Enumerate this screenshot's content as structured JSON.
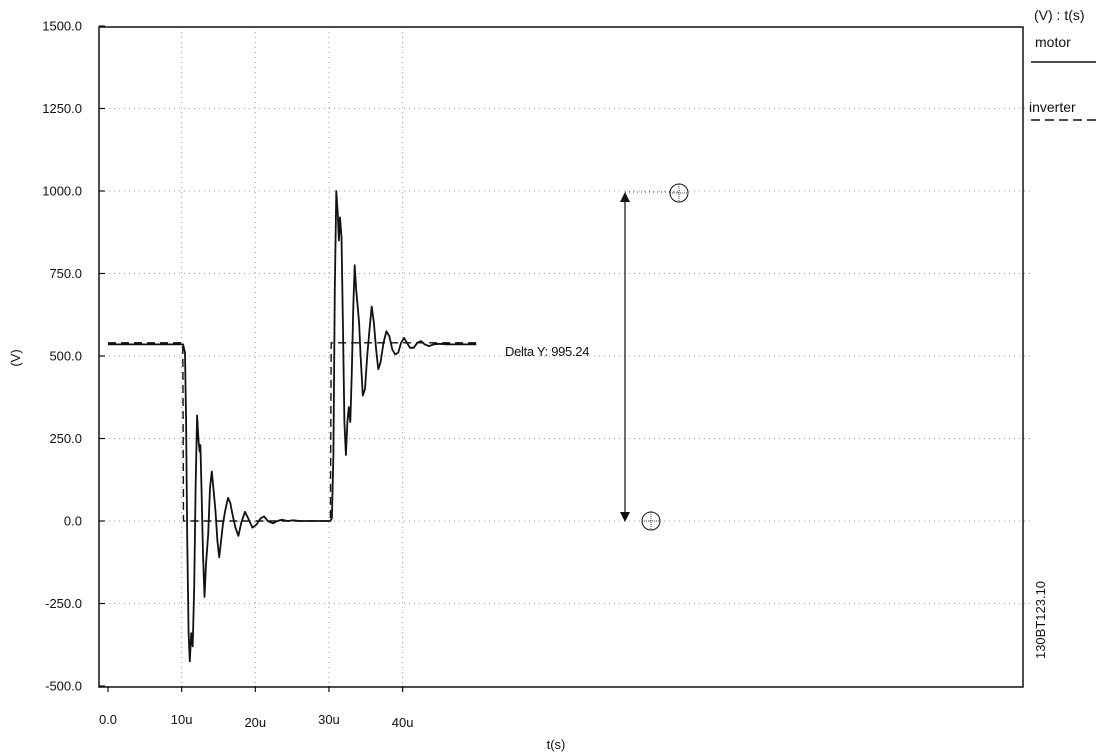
{
  "chart_data": {
    "type": "line",
    "ylabel": "(V)",
    "xlabel": "t(s)",
    "xlim": [
      0,
      50
    ],
    "ylim": [
      -500,
      1500
    ],
    "x_ticks": [
      {
        "value": 0,
        "label": "0.0"
      },
      {
        "value": 10,
        "label": "10u"
      },
      {
        "value": 20,
        "label": "20u"
      },
      {
        "value": 30,
        "label": "30u"
      },
      {
        "value": 40,
        "label": "40u"
      }
    ],
    "y_ticks": [
      {
        "value": -500,
        "label": "-500.0"
      },
      {
        "value": -250,
        "label": "-250.0"
      },
      {
        "value": 0,
        "label": "0.0"
      },
      {
        "value": 250,
        "label": "250.0"
      },
      {
        "value": 500,
        "label": "500.0"
      },
      {
        "value": 750,
        "label": "750.0"
      },
      {
        "value": 1000,
        "label": "1000.0"
      },
      {
        "value": 1250,
        "label": "1250.0"
      },
      {
        "value": 1500,
        "label": "1500.0"
      }
    ],
    "grid": true,
    "legend": {
      "header": "(V) : t(s)",
      "placement": "top-right",
      "entries": [
        {
          "name": "motor",
          "style": "solid"
        },
        {
          "name": "inverter",
          "style": "dashed"
        }
      ]
    },
    "annotation": {
      "text": "Delta Y: 995.24",
      "from": {
        "x": 29.4,
        "y": 0
      },
      "to": {
        "x": 31.0,
        "y": 995.24
      },
      "arrow_x": 28.0
    },
    "side_code": "130BT123.10",
    "series": [
      {
        "name": "motor",
        "style": "solid",
        "points": [
          [
            0,
            535
          ],
          [
            10.2,
            535
          ],
          [
            10.45,
            510
          ],
          [
            10.6,
            300
          ],
          [
            10.75,
            -50
          ],
          [
            10.95,
            -340
          ],
          [
            11.1,
            -425
          ],
          [
            11.3,
            -340
          ],
          [
            11.5,
            -380
          ],
          [
            11.7,
            -200
          ],
          [
            11.9,
            100
          ],
          [
            12.1,
            320
          ],
          [
            12.3,
            240
          ],
          [
            12.45,
            210
          ],
          [
            12.55,
            230
          ],
          [
            12.7,
            100
          ],
          [
            12.9,
            -100
          ],
          [
            13.1,
            -230
          ],
          [
            13.3,
            -130
          ],
          [
            13.6,
            -40
          ],
          [
            13.85,
            100
          ],
          [
            14.1,
            150
          ],
          [
            14.35,
            90
          ],
          [
            14.6,
            30
          ],
          [
            14.85,
            -60
          ],
          [
            15.1,
            -110
          ],
          [
            15.35,
            -60
          ],
          [
            15.6,
            -10
          ],
          [
            15.9,
            30
          ],
          [
            16.3,
            70
          ],
          [
            16.6,
            55
          ],
          [
            16.9,
            20
          ],
          [
            17.3,
            -20
          ],
          [
            17.7,
            -45
          ],
          [
            18.1,
            -5
          ],
          [
            18.6,
            28
          ],
          [
            19.1,
            5
          ],
          [
            19.6,
            -20
          ],
          [
            20.2,
            -10
          ],
          [
            20.7,
            8
          ],
          [
            21.2,
            14
          ],
          [
            21.7,
            0
          ],
          [
            22.4,
            -7
          ],
          [
            23.0,
            0
          ],
          [
            23.6,
            4
          ],
          [
            24.4,
            0
          ],
          [
            25.2,
            2
          ],
          [
            26,
            0
          ],
          [
            29.5,
            0
          ],
          [
            30.2,
            0
          ],
          [
            30.4,
            10
          ],
          [
            30.6,
            200
          ],
          [
            30.8,
            700
          ],
          [
            31.0,
            1000
          ],
          [
            31.2,
            930
          ],
          [
            31.35,
            850
          ],
          [
            31.5,
            920
          ],
          [
            31.7,
            860
          ],
          [
            31.9,
            600
          ],
          [
            32.1,
            300
          ],
          [
            32.3,
            200
          ],
          [
            32.5,
            300
          ],
          [
            32.7,
            345
          ],
          [
            32.9,
            300
          ],
          [
            33.1,
            450
          ],
          [
            33.3,
            650
          ],
          [
            33.5,
            775
          ],
          [
            33.7,
            700
          ],
          [
            33.9,
            650
          ],
          [
            34.1,
            600
          ],
          [
            34.3,
            500
          ],
          [
            34.6,
            380
          ],
          [
            34.9,
            400
          ],
          [
            35.2,
            500
          ],
          [
            35.5,
            580
          ],
          [
            35.8,
            650
          ],
          [
            36.1,
            600
          ],
          [
            36.4,
            520
          ],
          [
            36.7,
            460
          ],
          [
            37.0,
            480
          ],
          [
            37.4,
            540
          ],
          [
            37.8,
            575
          ],
          [
            38.2,
            560
          ],
          [
            38.6,
            520
          ],
          [
            39.0,
            505
          ],
          [
            39.4,
            510
          ],
          [
            39.8,
            540
          ],
          [
            40.2,
            555
          ],
          [
            40.6,
            540
          ],
          [
            41.0,
            525
          ],
          [
            41.5,
            525
          ],
          [
            42.0,
            540
          ],
          [
            42.5,
            545
          ],
          [
            43.0,
            535
          ],
          [
            43.6,
            530
          ],
          [
            44.2,
            535
          ],
          [
            45.0,
            537
          ],
          [
            46,
            535
          ],
          [
            50,
            535
          ]
        ]
      },
      {
        "name": "inverter",
        "style": "dashed",
        "points": [
          [
            0,
            540
          ],
          [
            10.15,
            540
          ],
          [
            10.25,
            0
          ],
          [
            30.2,
            0
          ],
          [
            30.3,
            540
          ],
          [
            50,
            540
          ]
        ]
      }
    ]
  }
}
